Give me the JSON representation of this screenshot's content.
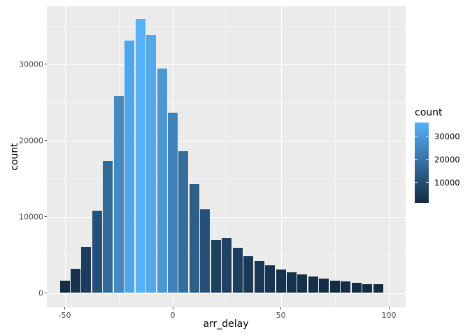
{
  "figure": {
    "background": "#FFFFFF",
    "panel_background": "#EBEBEB",
    "grid_color": "#FFFFFF",
    "tick_label_color": "#4D4D4D",
    "axis_title_color": "#000000"
  },
  "chart_data": {
    "type": "bar",
    "subtype": "histogram",
    "title": "",
    "xlabel": "arr_delay",
    "ylabel": "count",
    "grid": true,
    "binwidth": 5,
    "bin_centers": [
      -50,
      -45,
      -40,
      -35,
      -30,
      -25,
      -20,
      -15,
      -10,
      -5,
      0,
      5,
      10,
      15,
      20,
      25,
      30,
      35,
      40,
      45,
      50,
      55,
      60,
      65,
      70,
      75,
      80,
      85,
      90,
      95
    ],
    "counts": [
      1580,
      3140,
      5980,
      10800,
      17300,
      25800,
      33100,
      35900,
      33800,
      29400,
      23600,
      18600,
      14300,
      11000,
      6950,
      7200,
      5900,
      4840,
      4150,
      3620,
      3070,
      2710,
      2400,
      2160,
      1850,
      1630,
      1540,
      1300,
      1170,
      1160
    ],
    "x_tick_values": [
      -50,
      0,
      50,
      100
    ],
    "x_tick_labels": [
      "-50",
      "0",
      "50",
      "100"
    ],
    "y_tick_values": [
      0,
      10000,
      20000,
      30000
    ],
    "y_tick_labels": [
      "0",
      "10000",
      "20000",
      "30000"
    ],
    "xlim": [
      -58,
      108.5
    ],
    "ylim": [
      -1890,
      37600
    ],
    "fill_scale": {
      "low": "#132B43",
      "high": "#56B1F7"
    },
    "legend": {
      "title": "count",
      "position": "right",
      "tick_values": [
        30000,
        20000,
        10000
      ],
      "tick_labels": [
        "30000",
        "20000",
        "10000"
      ]
    }
  }
}
